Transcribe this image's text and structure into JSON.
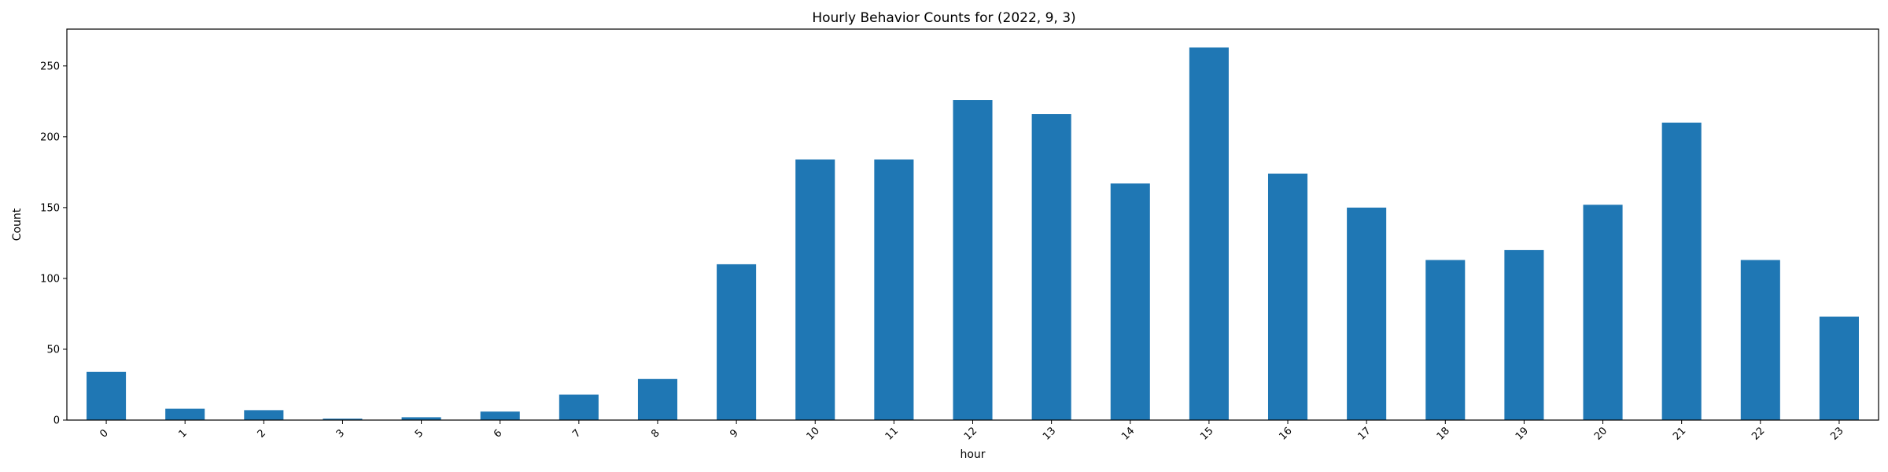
{
  "chart_data": {
    "type": "bar",
    "title": "Hourly Behavior Counts for (2022, 9, 3)",
    "xlabel": "hour",
    "ylabel": "Count",
    "categories": [
      "0",
      "1",
      "2",
      "3",
      "5",
      "6",
      "7",
      "8",
      "9",
      "10",
      "11",
      "12",
      "13",
      "14",
      "15",
      "16",
      "17",
      "18",
      "19",
      "20",
      "21",
      "22",
      "23"
    ],
    "values": [
      34,
      8,
      7,
      1,
      2,
      6,
      18,
      29,
      110,
      184,
      184,
      226,
      216,
      167,
      263,
      174,
      150,
      113,
      120,
      152,
      210,
      113,
      73
    ],
    "yticks": [
      0,
      50,
      100,
      150,
      200,
      250
    ],
    "ylim": [
      0,
      276
    ],
    "bar_color": "#1f77b4",
    "grid": false,
    "legend": false
  }
}
